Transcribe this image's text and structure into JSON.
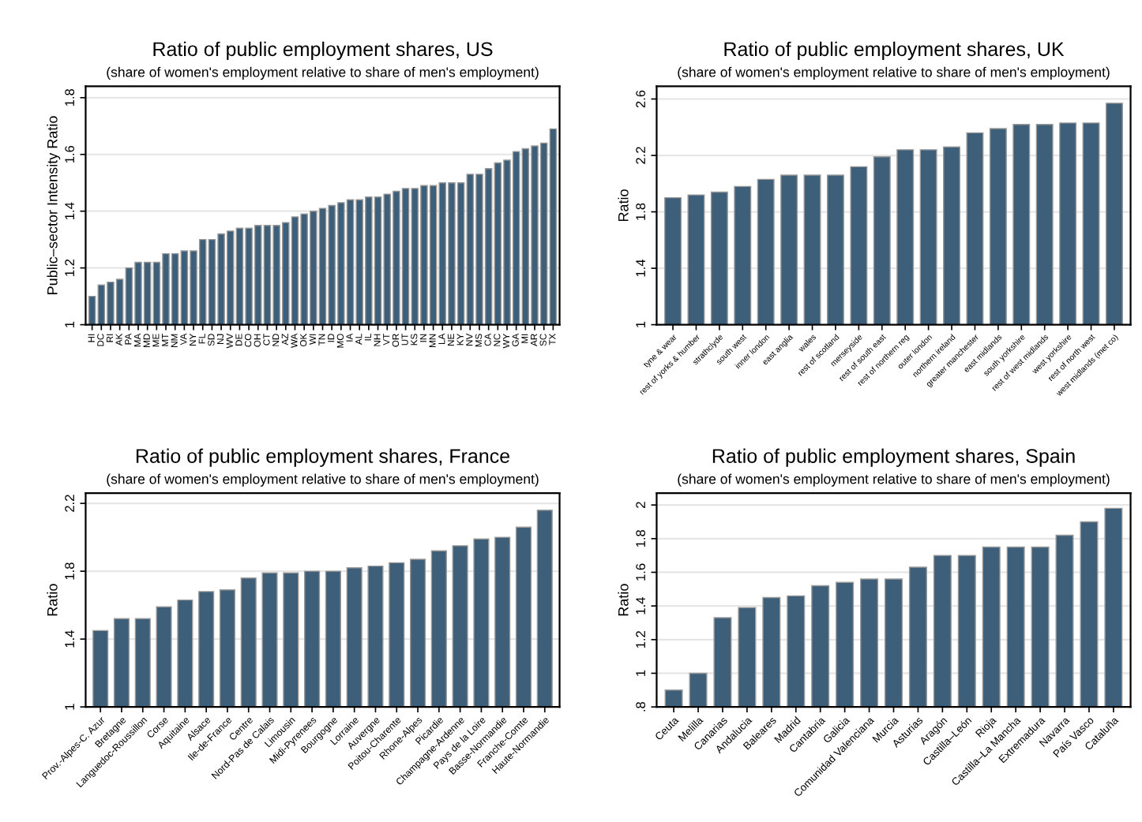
{
  "chart_data": [
    {
      "type": "bar",
      "title": "Ratio of public employment shares, US",
      "subtitle": "(share of women's employment relative to share of men's employment)",
      "ylabel": "Public–sector Intensity Ratio",
      "color": "#3e5f79",
      "grid": "y",
      "ylim": [
        1,
        1.84
      ],
      "yticks": [
        1,
        1.2,
        1.4,
        1.6,
        1.8
      ],
      "categories": [
        "HI",
        "DC",
        "RI",
        "AK",
        "PA",
        "MA",
        "MD",
        "ME",
        "MT",
        "NM",
        "VA",
        "NY",
        "FL",
        "SD",
        "NJ",
        "WV",
        "DE",
        "CO",
        "OH",
        "CT",
        "ND",
        "AZ",
        "WA",
        "OK",
        "WI",
        "TN",
        "ID",
        "MO",
        "IA",
        "AL",
        "IL",
        "NH",
        "VT",
        "OR",
        "UT",
        "KS",
        "IN",
        "MN",
        "LA",
        "NE",
        "KY",
        "NV",
        "MS",
        "CA",
        "NC",
        "WY",
        "GA",
        "MI",
        "AR",
        "SC",
        "TX"
      ],
      "values": [
        1.1,
        1.14,
        1.15,
        1.16,
        1.2,
        1.22,
        1.22,
        1.22,
        1.25,
        1.25,
        1.26,
        1.26,
        1.3,
        1.3,
        1.32,
        1.33,
        1.34,
        1.34,
        1.35,
        1.35,
        1.35,
        1.36,
        1.38,
        1.39,
        1.4,
        1.41,
        1.42,
        1.43,
        1.44,
        1.44,
        1.45,
        1.45,
        1.46,
        1.47,
        1.48,
        1.48,
        1.49,
        1.49,
        1.5,
        1.5,
        1.5,
        1.53,
        1.53,
        1.55,
        1.57,
        1.58,
        1.61,
        1.62,
        1.63,
        1.64,
        1.69
      ]
    },
    {
      "type": "bar",
      "title": "Ratio of public employment shares, UK",
      "subtitle": "(share of women's employment relative to share of men's employment)",
      "ylabel": "Ratio",
      "color": "#3e5f79",
      "grid": "y",
      "ylim": [
        1,
        2.69
      ],
      "yticks": [
        1,
        1.4,
        1.8,
        2.2,
        2.6
      ],
      "categories": [
        "tyne & wear",
        "rest of yorks & humber",
        "strathclyde",
        "south west",
        "inner london",
        "east anglia",
        "wales",
        "rest of scotland",
        "merseyside",
        "rest of south east",
        "rest of northern reg",
        "outer london",
        "northern ireland",
        "greater manchester",
        "east midlands",
        "south yorkshire",
        "rest of west midlands",
        "west yorkshire",
        "rest of north west",
        "west midlands (met co)"
      ],
      "values": [
        1.9,
        1.92,
        1.94,
        1.98,
        2.03,
        2.06,
        2.06,
        2.06,
        2.12,
        2.19,
        2.24,
        2.24,
        2.26,
        2.36,
        2.39,
        2.42,
        2.42,
        2.43,
        2.43,
        2.57
      ]
    },
    {
      "type": "bar",
      "title": "Ratio of public employment shares, France",
      "subtitle": "(share of women's employment relative to share of men's employment)",
      "ylabel": "Ratio",
      "color": "#3e5f79",
      "grid": "y",
      "ylim": [
        1,
        2.26
      ],
      "yticks": [
        1,
        1.4,
        1.8,
        2.2
      ],
      "categories": [
        "Prov.-Alpes-C. Azur",
        "Bretagne",
        "Languedoc-Roussillon",
        "Corse",
        "Aquitaine",
        "Alsace",
        "Ile-de-France",
        "Centre",
        "Nord-Pas de Calais",
        "Limousin",
        "Midi-Pyrenees",
        "Bourgogne",
        "Lorraine",
        "Auvergne",
        "Poitou-Charente",
        "Rhone-Alpes",
        "Picardie",
        "Champagne-Ardenne",
        "Pays de la Loire",
        "Basse-Normandie",
        "Franche-Comte",
        "Haute-Normandie"
      ],
      "values": [
        1.45,
        1.52,
        1.52,
        1.59,
        1.63,
        1.68,
        1.69,
        1.76,
        1.79,
        1.79,
        1.8,
        1.8,
        1.82,
        1.83,
        1.85,
        1.87,
        1.92,
        1.95,
        1.99,
        2.0,
        2.06,
        2.16
      ]
    },
    {
      "type": "bar",
      "title": "Ratio of public employment shares, Spain",
      "subtitle": "(share of women's employment relative to share of men's employment)",
      "ylabel": "Ratio",
      "color": "#3e5f79",
      "grid": "y",
      "ylim": [
        0.8,
        2.07
      ],
      "yticks": [
        {
          "value": 0.8,
          "label": ".8"
        },
        1,
        1.2,
        1.4,
        1.6,
        1.8,
        2
      ],
      "categories": [
        "Ceuta",
        "Melilla",
        "Canarias",
        "Andalucia",
        "Baleares",
        "Madrid",
        "Cantabria",
        "Galicia",
        "Comunidad Valenciana",
        "Murcia",
        "Asturias",
        "Aragón",
        "Castilla–León",
        "Rioja",
        "Castilla–La Mancha",
        "Extremadura",
        "Navarra",
        "País Vasco",
        "Cataluña"
      ],
      "values": [
        0.9,
        1.0,
        1.33,
        1.39,
        1.45,
        1.46,
        1.52,
        1.54,
        1.56,
        1.56,
        1.63,
        1.7,
        1.7,
        1.75,
        1.75,
        1.75,
        1.82,
        1.9,
        1.98
      ]
    }
  ]
}
